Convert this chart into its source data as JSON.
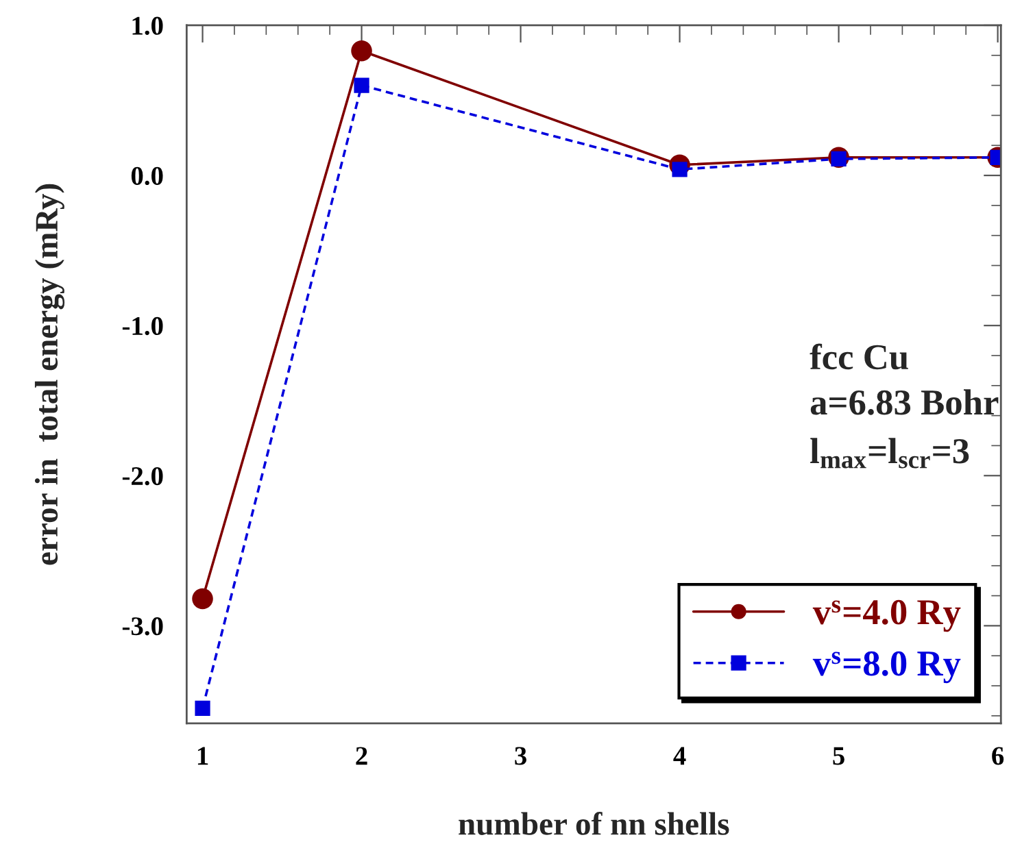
{
  "chart_data": {
    "type": "line",
    "xlabel": "number of nn shells",
    "ylabel": "error in  total energy (mRy)",
    "x": [
      1,
      2,
      4,
      5,
      6
    ],
    "series": [
      {
        "name": "v$^{s}$=4.0 Ry",
        "color": "#800000",
        "values": [
          -2.82,
          0.83,
          0.07,
          0.12,
          0.12
        ],
        "marker": "circle",
        "line_style": "solid"
      },
      {
        "name": "v$^{s}$=8.0 Ry",
        "color": "#0000dd",
        "values": [
          -3.55,
          0.6,
          0.04,
          0.11,
          0.12
        ],
        "marker": "square",
        "line_style": "dashed"
      }
    ],
    "xlim": [
      0.9,
      6.02
    ],
    "xticks": [
      1,
      2,
      3,
      4,
      5,
      6
    ],
    "ylim": [
      -3.65,
      1.0
    ],
    "yticks": [
      {
        "value": 1,
        "label": "1.0"
      },
      {
        "value": 0,
        "label": "0.0"
      },
      {
        "value": -1,
        "label": "-1.0"
      },
      {
        "value": -2,
        "label": "-2.0"
      },
      {
        "value": -3,
        "label": "-3.0"
      }
    ],
    "annotations": [
      "fcc Cu",
      "a=6.83 Bohr",
      "l$_{max}$=l$_{scr}$=3"
    ],
    "legend": "bottom right",
    "grid": false
  }
}
